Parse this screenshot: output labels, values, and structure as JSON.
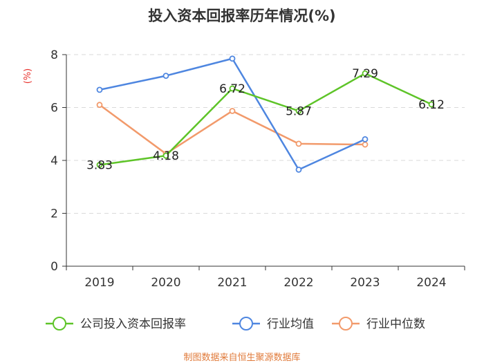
{
  "chart_data": {
    "type": "line",
    "title": "投入资本回报率历年情况(%)",
    "ylabel": "(%)",
    "xlabel": "",
    "categories": [
      "2019",
      "2020",
      "2021",
      "2022",
      "2023",
      "2024"
    ],
    "ylim": [
      0,
      8
    ],
    "yticks": [
      0,
      2,
      4,
      6,
      8
    ],
    "grid": true,
    "legend_position": "bottom",
    "series": [
      {
        "name": "公司投入资本回报率",
        "color": "#5ec428",
        "values": [
          3.83,
          4.18,
          6.72,
          5.87,
          7.29,
          6.12
        ],
        "labels": [
          "3.83",
          "4.18",
          "6.72",
          "5.87",
          "7.29",
          "6.12"
        ]
      },
      {
        "name": "行业均值",
        "color": "#4e86e0",
        "values": [
          6.67,
          7.2,
          7.85,
          3.65,
          4.8,
          null
        ]
      },
      {
        "name": "行业中位数",
        "color": "#f29a6b",
        "values": [
          6.1,
          4.25,
          5.87,
          4.63,
          4.6,
          null
        ]
      }
    ]
  },
  "source_text": "制图数据来自恒生聚源数据库"
}
